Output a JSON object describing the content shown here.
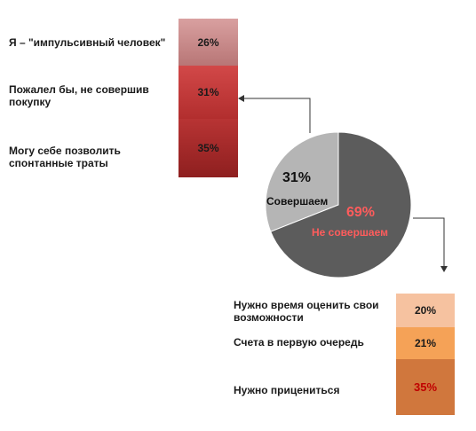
{
  "chart_data": [
    {
      "type": "pie",
      "slices": [
        {
          "label": "Совершаем",
          "value": 31,
          "value_label": "31%",
          "color": "#b5b5b5"
        },
        {
          "label": "Не совершаем",
          "value": 69,
          "value_label": "69%",
          "color": "#5c5c5c"
        }
      ]
    },
    {
      "type": "bar",
      "stacked": true,
      "categories": [
        "Я – \"импульсивный человек\"",
        "Пожалел бы, не совершив покупку",
        "Могу себе  позволить спонтанные траты"
      ],
      "values": [
        26,
        31,
        35
      ],
      "value_labels": [
        "26%",
        "31%",
        "35%"
      ],
      "colors": [
        "#c78f8f",
        "#c73a3a",
        "#a52a2a"
      ]
    },
    {
      "type": "bar",
      "stacked": true,
      "categories": [
        "Нужно время оценить свои возможности",
        "Счета в первую очередь",
        "Нужно прицениться"
      ],
      "values": [
        20,
        21,
        35
      ],
      "value_labels": [
        "20%",
        "21%",
        "35%"
      ],
      "colors": [
        "#f6c2a0",
        "#f5a257",
        "#d0773d"
      ],
      "value_label_colors": [
        "#1a1a1a",
        "#1a1a1a",
        "#c00000"
      ]
    }
  ]
}
